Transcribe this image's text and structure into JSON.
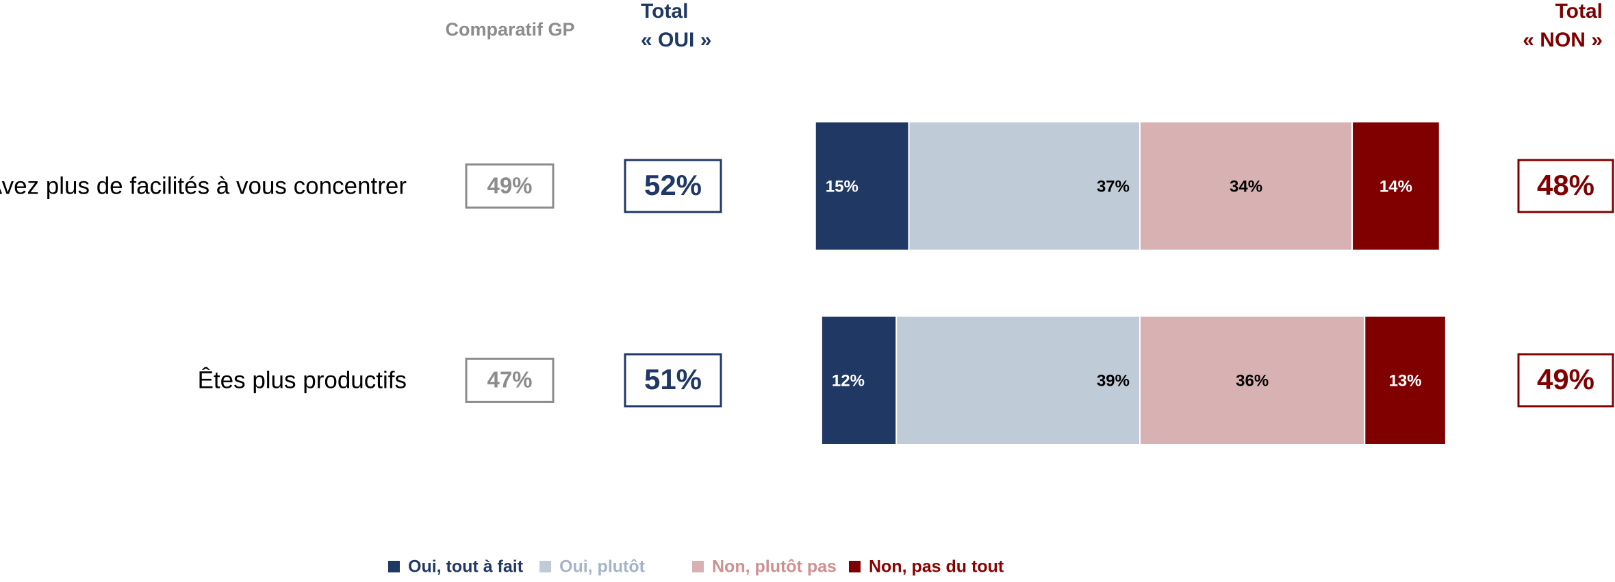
{
  "chart_data": {
    "type": "bar",
    "orientation": "horizontal",
    "stacked": true,
    "diverging": true,
    "categories": [
      "Avez plus de facilités à vous concentrer",
      "Êtes plus productifs"
    ],
    "series": [
      {
        "name": "Oui, tout à fait",
        "color": "#203864",
        "label_color": "#ffffff",
        "values": [
          15,
          12
        ],
        "value_labels": [
          "15%",
          "12%"
        ]
      },
      {
        "name": "Oui, plutôt",
        "color": "#c0cbd8",
        "label_color": "#000000",
        "values": [
          37,
          39
        ],
        "value_labels": [
          "37%",
          "39%"
        ]
      },
      {
        "name": "Non, plutôt pas",
        "color": "#d8b2b2",
        "label_color": "#000000",
        "values": [
          34,
          36
        ],
        "value_labels": [
          "34%",
          "36%"
        ]
      },
      {
        "name": "Non, pas du tout",
        "color": "#800000",
        "label_color": "#ffffff",
        "values": [
          14,
          13
        ],
        "value_labels": [
          "14%",
          "13%"
        ]
      }
    ],
    "legend_colors": [
      "#203864",
      "#a6b4c8",
      "#d09090",
      "#8b0000"
    ],
    "comparatif": {
      "title": "Comparatif GP",
      "color": "#8c8c8c",
      "values": [
        49,
        47
      ],
      "value_labels": [
        "49%",
        "47%"
      ]
    },
    "total_oui": {
      "title": [
        "Total",
        "« OUI »"
      ],
      "color": "#203864",
      "values": [
        52,
        51
      ],
      "value_labels": [
        "52%",
        "51%"
      ]
    },
    "total_non": {
      "title": [
        "Total",
        "« NON »"
      ],
      "color": "#800000",
      "values": [
        48,
        49
      ],
      "value_labels": [
        "48%",
        "49%"
      ]
    }
  }
}
